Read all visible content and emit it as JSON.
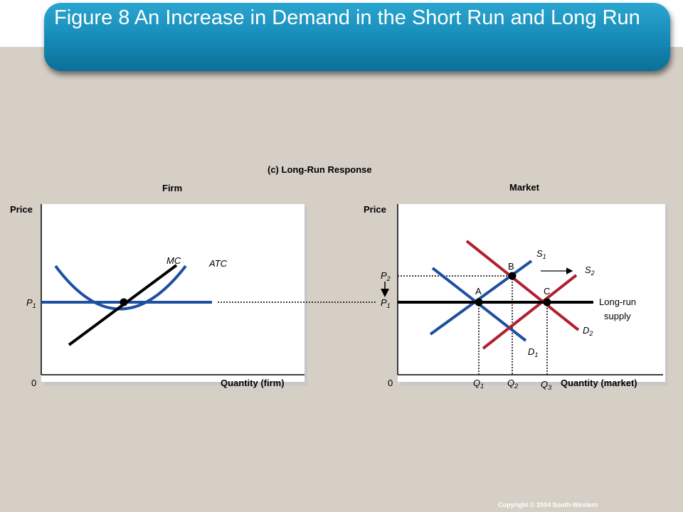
{
  "slide": {
    "title": "Figure 8 An Increase in Demand in the Short Run and Long Run",
    "copyright": "Copyright © 2004  South-Western"
  },
  "chart_data": {
    "type": "line",
    "title": "(c) Long-Run  Response",
    "panels": [
      {
        "name": "Firm",
        "ylabel": "Price",
        "xlabel": "Quantity  (firm)",
        "origin_label": "0",
        "price_labels": [
          {
            "base": "P",
            "sub": "1"
          }
        ],
        "curves": [
          {
            "name": "MC",
            "color": "#000000"
          },
          {
            "name": "ATC",
            "color": "#1f4fa0"
          },
          {
            "name": "P1",
            "color": "#1f4fa0"
          }
        ]
      },
      {
        "name": "Market",
        "ylabel": "Price",
        "xlabel": "Quantity  (market)",
        "origin_label": "0",
        "price_labels": [
          {
            "base": "P",
            "sub": "2"
          },
          {
            "base": "P",
            "sub": "1"
          }
        ],
        "quantity_labels": [
          {
            "base": "Q",
            "sub": "1"
          },
          {
            "base": "Q",
            "sub": "2"
          },
          {
            "base": "Q",
            "sub": "3"
          }
        ],
        "curves": [
          {
            "name": "S1",
            "base": "S",
            "sub": "1",
            "color": "#1f4fa0"
          },
          {
            "name": "S2",
            "base": "S",
            "sub": "2",
            "color": "#b0202e"
          },
          {
            "name": "D1",
            "base": "D",
            "sub": "1",
            "color": "#1f4fa0"
          },
          {
            "name": "D2",
            "base": "D",
            "sub": "2",
            "color": "#b0202e"
          },
          {
            "name": "Long-run supply",
            "line1": "Long-run",
            "line2": "supply",
            "color": "#000000"
          }
        ],
        "points": [
          "A",
          "B",
          "C"
        ]
      }
    ],
    "grid": false
  }
}
